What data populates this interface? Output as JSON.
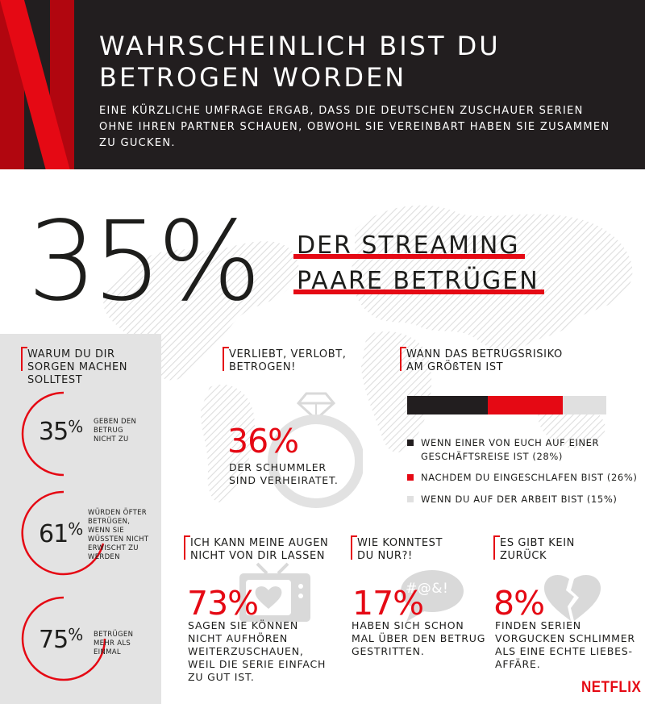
{
  "header": {
    "title_line1": "WAHRSCHEINLICH BIST DU",
    "title_line2": "BETROGEN WORDEN",
    "subtitle_line1": "EINE KÜRZLICHE UMFRAGE ERGAB, DASS DIE DEUTSCHEN ZUSCHAUER SERIEN",
    "subtitle_line2": "OHNE IHREN PARTNER SCHAUEN, OBWOHL SIE VEREINBART HABEN SIE ZUSAMMEN",
    "subtitle_line3": "ZU GUCKEN."
  },
  "hero": {
    "number": "35%",
    "line1": "DER STREAMING",
    "line2": "PAARE BETRÜGEN"
  },
  "worry": {
    "heading_line1": "WARUM DU DIR",
    "heading_line2": "SORGEN MACHEN",
    "heading_line3": "SOLLTEST",
    "stats": [
      {
        "value": "35",
        "pct": "%",
        "level": 0.35,
        "lines": [
          "GEBEN DEN",
          "BETRUG",
          "NICHT ZU"
        ]
      },
      {
        "value": "61",
        "pct": "%",
        "level": 0.61,
        "lines": [
          "WÜRDEN ÖFTER",
          "BETRÜGEN,",
          "WENN SIE",
          "WÜSSTEN NICHT",
          "ERWISCHT ZU",
          "WERDEN"
        ]
      },
      {
        "value": "75",
        "pct": "%",
        "level": 0.75,
        "lines": [
          "BETRÜGEN",
          "MEHR ALS",
          "EINMAL"
        ]
      }
    ]
  },
  "married": {
    "heading_line1": "VERLIEBT, VERLOBT,",
    "heading_line2": "BETROGEN!",
    "value": "36%",
    "text_line1": "DER SCHUMMLER",
    "text_line2": "SIND VERHEIRATET.",
    "icon": "diamond-ring-icon"
  },
  "risk": {
    "heading_line1": "WANN DAS BETRUGSRISIKO",
    "heading_line2": "AM GRÖßTEN IST",
    "segments": [
      {
        "color": "#221e1f",
        "value": 28,
        "line1": "WENN EINER VON EUCH AUF EINER",
        "line2": "GESCHÄFTSREISE IST (28%)"
      },
      {
        "color": "#e50914",
        "value": 26,
        "line1": "NACHDEM DU EINGESCHLAFEN BIST (26%)",
        "line2": ""
      },
      {
        "color": "#e0e0e0",
        "value": 15,
        "line1": "WENN DU AUF DER ARBEIT BIST (15%)",
        "line2": ""
      }
    ]
  },
  "eyes": {
    "heading_line1": "ICH KANN MEINE AUGEN",
    "heading_line2": "NICHT VON DIR LASSEN",
    "value": "73%",
    "lines": [
      "SAGEN SIE KÖNNEN",
      "NICHT AUFHÖREN",
      "WEITERZUSCHAUEN,",
      "WEIL DIE SERIE EINFACH",
      "ZU GUT IST."
    ],
    "icon": "tv-heart-icon"
  },
  "argue": {
    "heading_line1": "WIE KONNTEST",
    "heading_line2": "DU NUR?!",
    "value": "17%",
    "bubble_text": "#@&!",
    "lines": [
      "HABEN SICH SCHON",
      "MAL ÜBER DEN BETRUG",
      "GESTRITTEN."
    ],
    "icon": "speech-bubble-icon"
  },
  "noreturn": {
    "heading_line1": "ES GIBT KEIN",
    "heading_line2": "ZURÜCK",
    "value": "8%",
    "lines": [
      "FINDEN SERIEN",
      "VORGUCKEN SCHLIMMER",
      "ALS EINE ECHTE LIEBES-",
      "AFFÄRE."
    ],
    "icon": "broken-heart-icon"
  },
  "footer": {
    "brand": "NETFLIX"
  },
  "colors": {
    "red": "#e50914",
    "dark": "#221e1f",
    "grey": "#e3e3e3"
  }
}
